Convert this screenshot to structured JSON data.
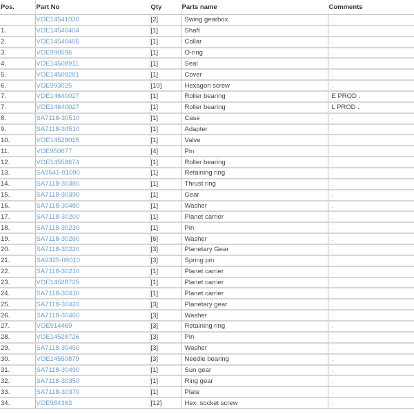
{
  "colors": {
    "link": "#6a9fd0",
    "text": "#444444",
    "row_border": "#d6d6d6"
  },
  "table": {
    "headers": [
      "Pos.",
      "Part No",
      "Qty",
      "Parts name",
      "Comments"
    ],
    "rows": [
      [
        "",
        "VOE14541030",
        "[2]",
        "Swing gearbox",
        "."
      ],
      [
        "1.",
        "VOE14540404",
        "[1]",
        "Shaft",
        "."
      ],
      [
        "2.",
        "VOE14540405",
        "[1]",
        "Collar",
        "."
      ],
      [
        "3.",
        "VOE990596",
        "[1]",
        "O-ring",
        "."
      ],
      [
        "4.",
        "VOE14508911",
        "[1]",
        "Seal",
        "."
      ],
      [
        "5.",
        "VOE14509281",
        "[1]",
        "Cover",
        "."
      ],
      [
        "6.",
        "VOE993025",
        "[10]",
        "Hexagon screw",
        "."
      ],
      [
        "7.",
        "VOE14640027",
        "[1]",
        "Roller bearing",
        "E PROD ."
      ],
      [
        "7.",
        "VOE14640027",
        "[1]",
        "Roller bearing",
        "L PROD ."
      ],
      [
        "8.",
        "SA7118-30510",
        "[1]",
        "Case",
        "."
      ],
      [
        "9.",
        "SA7118-34510",
        "[1]",
        "Adapter",
        "."
      ],
      [
        "10.",
        "VOE14529015",
        "[1]",
        "Valve",
        "."
      ],
      [
        "11.",
        "VOE950677",
        "[4]",
        "Pin",
        "."
      ],
      [
        "12.",
        "VOE14558674",
        "[1]",
        "Roller bearing",
        "."
      ],
      [
        "13.",
        "SA9541-01090",
        "[1]",
        "Retaining ring",
        "."
      ],
      [
        "14.",
        "SA7118-30380",
        "[1]",
        "Thrust ring",
        "."
      ],
      [
        "15.",
        "SA7118-30390",
        "[1]",
        "Gear",
        "."
      ],
      [
        "16.",
        "SA7118-30480",
        "[1]",
        "Washer",
        "."
      ],
      [
        "17.",
        "SA7118-30200",
        "[1]",
        "Planet carrier",
        "."
      ],
      [
        "18.",
        "SA7118-30230",
        "[1]",
        "Pin",
        "."
      ],
      [
        "19.",
        "SA7118-30260",
        "[6]",
        "Washer",
        "."
      ],
      [
        "20.",
        "SA7118-30220",
        "[3]",
        "Planetary Gear",
        "."
      ],
      [
        "21.",
        "SA9325-08010",
        "[3]",
        "Spring pin",
        "."
      ],
      [
        "22.",
        "SA7118-30210",
        "[1]",
        "Planet carrier",
        "."
      ],
      [
        "23.",
        "VOE14528725",
        "[1]",
        "Planet carrier",
        "."
      ],
      [
        "24.",
        "SA7118-30410",
        "[1]",
        "Planet carrier",
        "."
      ],
      [
        "25.",
        "SA7118-30420",
        "[3]",
        "Planetary gear",
        "."
      ],
      [
        "26.",
        "SA7118-30460",
        "[3]",
        "Washer",
        "."
      ],
      [
        "27.",
        "VOE914469",
        "[3]",
        "Retaining ring",
        "."
      ],
      [
        "28.",
        "VOE14528726",
        "[3]",
        "Pin",
        "."
      ],
      [
        "29.",
        "SA7118-30450",
        "[3]",
        "Washer",
        "."
      ],
      [
        "30.",
        "VOE14550879",
        "[3]",
        "Needle bearing",
        "."
      ],
      [
        "31.",
        "SA7118-30490",
        "[1]",
        "Sun gear",
        "."
      ],
      [
        "32.",
        "SA7118-30350",
        "[1]",
        "Ring gear",
        "."
      ],
      [
        "33.",
        "SA7118-30370",
        "[1]",
        "Plate",
        "."
      ],
      [
        "34.",
        "VOE984363",
        "[12]",
        "Hex. socket screw",
        "."
      ]
    ]
  }
}
